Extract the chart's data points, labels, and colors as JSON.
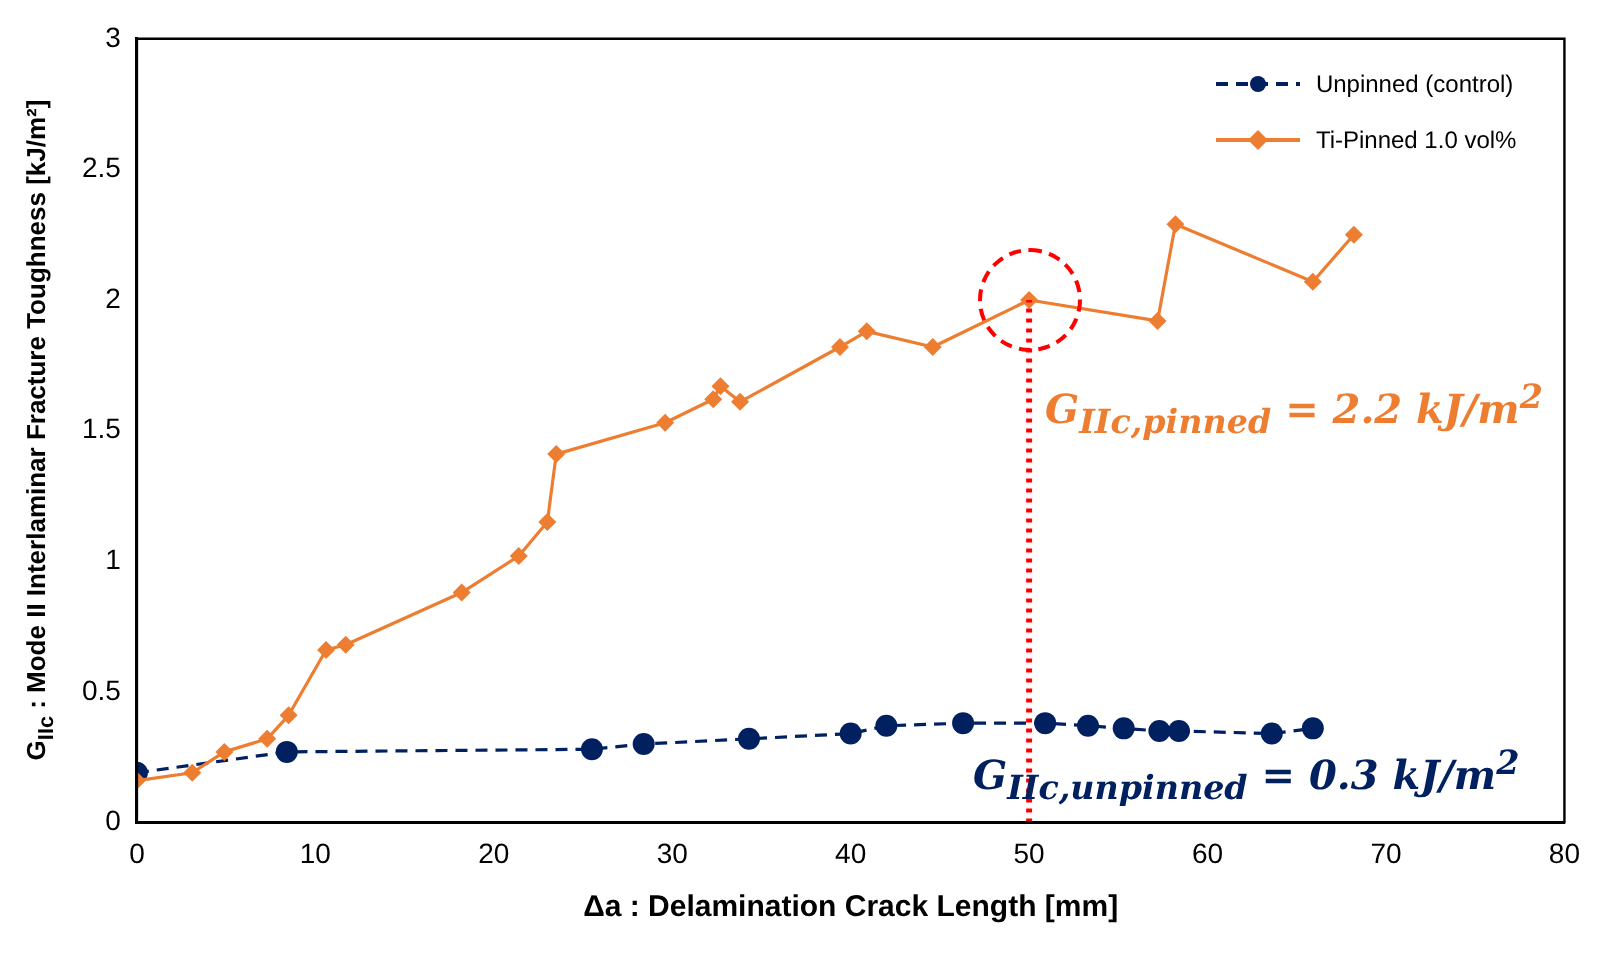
{
  "chart_data": {
    "type": "line",
    "xlabel": "Δa : Delamination Crack Length [mm]",
    "ylabel": "G$_{IIc}$ : Mode II Interlaminar Fracture Toughness  [kJ/m²]",
    "xlim": [
      0,
      80
    ],
    "xticks": [
      0,
      10,
      20,
      30,
      40,
      50,
      60,
      70,
      80
    ],
    "ylim": [
      0,
      3
    ],
    "yticks": [
      0,
      0.5,
      1,
      1.5,
      2,
      2.5,
      3
    ],
    "grid": false,
    "legend": "top right",
    "series": [
      {
        "name": "Unpinned (control)",
        "color": "#002060",
        "marker": "circle",
        "line_style": "dashed",
        "x": [
          0,
          8.4,
          25.5,
          28.4,
          34.3,
          40.0,
          42.0,
          46.3,
          50.9,
          53.3,
          55.3,
          57.3,
          58.4,
          63.6,
          65.9
        ],
        "values": [
          0.19,
          0.27,
          0.28,
          0.3,
          0.32,
          0.34,
          0.37,
          0.38,
          0.38,
          0.37,
          0.36,
          0.35,
          0.35,
          0.34,
          0.36
        ]
      },
      {
        "name": "Ti-Pinned 1.0 vol%",
        "color": "#ed7d31",
        "marker": "diamond",
        "line_style": "solid",
        "x": [
          0,
          3.1,
          4.9,
          7.3,
          8.5,
          10.6,
          11.7,
          18.2,
          21.4,
          23.0,
          23.5,
          29.6,
          32.3,
          32.7,
          33.8,
          39.4,
          40.9,
          44.6,
          50.0,
          57.2,
          58.2,
          65.9,
          68.2
        ],
        "values": [
          0.16,
          0.19,
          0.27,
          0.32,
          0.41,
          0.66,
          0.68,
          0.88,
          1.02,
          1.15,
          1.41,
          1.53,
          1.62,
          1.67,
          1.61,
          1.82,
          1.88,
          1.82,
          2.0,
          1.92,
          2.29,
          2.07,
          2.25
        ]
      }
    ],
    "ref_lines": [
      {
        "axis": "x",
        "value": 50,
        "color": "#ff0000",
        "line_style": "dotted"
      }
    ],
    "annotations": [
      "G$_{IIc,pinned}$ = 2.2 kJ/m$^{2}$",
      "G$_{IIc,unpinned}$ = 0.3 kJ/m$^{2}$"
    ]
  }
}
